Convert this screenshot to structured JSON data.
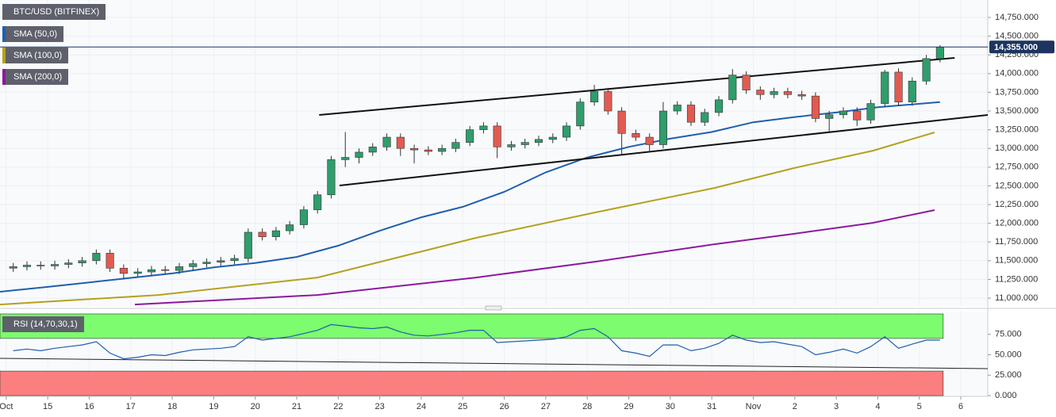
{
  "chart_data": {
    "type": "candlestick",
    "legend": "BTC/USD (BITFINEX)",
    "up_color": "#2f9d6c",
    "down_color": "#e15b51",
    "xlim": [
      13.85,
      37.65
    ],
    "xticks": [
      {
        "value": 14,
        "label": "Oct"
      },
      15,
      16,
      17,
      18,
      19,
      20,
      21,
      22,
      23,
      24,
      25,
      26,
      27,
      28,
      29,
      30,
      31,
      {
        "value": 32,
        "label": "Nov"
      },
      {
        "value": 33,
        "label": "2"
      },
      {
        "value": 34,
        "label": "3"
      },
      {
        "value": 35,
        "label": "4"
      },
      {
        "value": 36,
        "label": "5"
      },
      {
        "value": 37,
        "label": "6"
      }
    ],
    "ylim": [
      10905,
      14962
    ],
    "yticks": [
      {
        "value": 11000,
        "label": "11,000.000"
      },
      {
        "value": 11250,
        "label": "11,250.000"
      },
      {
        "value": 11500,
        "label": "11,500.000"
      },
      {
        "value": 11750,
        "label": "11,750.000"
      },
      {
        "value": 12000,
        "label": "12,000.000"
      },
      {
        "value": 12250,
        "label": "12,250.000"
      },
      {
        "value": 12500,
        "label": "12,500.000"
      },
      {
        "value": 12750,
        "label": "12,750.000"
      },
      {
        "value": 13000,
        "label": "13,000.000"
      },
      {
        "value": 13250,
        "label": "13,250.000"
      },
      {
        "value": 13500,
        "label": "13,500.000"
      },
      {
        "value": 13750,
        "label": "13,750.000"
      },
      {
        "value": 14000,
        "label": "14,000.000"
      },
      {
        "value": 14250,
        "label": "14,250.000"
      },
      {
        "value": 14500,
        "label": "14,500.000"
      },
      {
        "value": 14750,
        "label": "14,750.000"
      }
    ],
    "grid": true,
    "last_price": {
      "value": 14355,
      "label": "14,355.000",
      "color": "#1d3461"
    },
    "candles": {
      "x": [
        14.17,
        14.5,
        14.83,
        15.17,
        15.5,
        15.83,
        16.17,
        16.5,
        16.83,
        17.17,
        17.5,
        17.83,
        18.17,
        18.5,
        18.83,
        19.17,
        19.5,
        19.83,
        20.17,
        20.5,
        20.83,
        21.17,
        21.5,
        21.83,
        22.17,
        22.5,
        22.83,
        23.17,
        23.5,
        23.83,
        24.17,
        24.5,
        24.83,
        25.17,
        25.5,
        25.83,
        26.17,
        26.5,
        26.83,
        27.17,
        27.5,
        27.83,
        28.17,
        28.5,
        28.83,
        29.17,
        29.5,
        29.83,
        30.17,
        30.5,
        30.83,
        31.17,
        31.5,
        31.83,
        32.17,
        32.5,
        32.83,
        33.17,
        33.5,
        33.83,
        34.17,
        34.5,
        34.83,
        35.17,
        35.5,
        35.83,
        36.17,
        36.5
      ],
      "open": [
        11400,
        11420,
        11440,
        11430,
        11450,
        11470,
        11500,
        11600,
        11400,
        11330,
        11350,
        11380,
        11370,
        11420,
        11460,
        11480,
        11500,
        11530,
        11880,
        11820,
        11900,
        11980,
        12180,
        12380,
        12850,
        12880,
        12950,
        13020,
        13150,
        13000,
        12980,
        12960,
        13000,
        13080,
        13250,
        13300,
        13020,
        13050,
        13080,
        13120,
        13150,
        13300,
        13620,
        13760,
        13500,
        13200,
        13150,
        13050,
        13500,
        13580,
        13350,
        13480,
        13650,
        13980,
        13780,
        13720,
        13760,
        13720,
        13700,
        13400,
        13450,
        13500,
        13380,
        13600,
        14020,
        13620,
        13900,
        14200
      ],
      "high": [
        11470,
        11490,
        11490,
        11500,
        11520,
        11550,
        11650,
        11650,
        11450,
        11400,
        11430,
        11430,
        11470,
        11510,
        11530,
        11550,
        11580,
        11930,
        11930,
        11950,
        12030,
        12230,
        12430,
        12900,
        13220,
        13000,
        13070,
        13200,
        13200,
        13050,
        13030,
        13050,
        13130,
        13300,
        13350,
        13350,
        13100,
        13130,
        13170,
        13200,
        13350,
        13670,
        13850,
        13810,
        13550,
        13250,
        13200,
        13620,
        13630,
        13630,
        13530,
        13700,
        14060,
        14030,
        13830,
        13810,
        13810,
        13770,
        13750,
        13500,
        13550,
        13550,
        13650,
        14050,
        14070,
        13950,
        14250,
        14380
      ],
      "low": [
        11350,
        11370,
        11380,
        11380,
        11400,
        11420,
        11450,
        11350,
        11250,
        11280,
        11300,
        11320,
        11320,
        11370,
        11410,
        11430,
        11450,
        11480,
        11770,
        11770,
        11850,
        11930,
        12130,
        12330,
        12750,
        12800,
        12900,
        12970,
        12900,
        12800,
        12910,
        12910,
        12950,
        13030,
        13200,
        12870,
        12970,
        13000,
        13030,
        13070,
        13100,
        13250,
        13570,
        13450,
        12920,
        13100,
        12950,
        13000,
        13450,
        13300,
        13300,
        13430,
        13600,
        13730,
        13650,
        13670,
        13670,
        13650,
        13350,
        13220,
        13400,
        13300,
        13330,
        13550,
        13570,
        13570,
        13850,
        14150
      ],
      "close": [
        11420,
        11440,
        11430,
        11450,
        11470,
        11500,
        11600,
        11400,
        11330,
        11350,
        11380,
        11370,
        11420,
        11460,
        11480,
        11500,
        11530,
        11880,
        11820,
        11900,
        11980,
        12180,
        12380,
        12850,
        12880,
        12950,
        13020,
        13150,
        13000,
        12980,
        12960,
        13000,
        13080,
        13250,
        13300,
        13020,
        13050,
        13080,
        13120,
        13150,
        13300,
        13620,
        13760,
        13500,
        13200,
        13150,
        13050,
        13500,
        13580,
        13350,
        13480,
        13650,
        13980,
        13780,
        13720,
        13760,
        13720,
        13700,
        13400,
        13450,
        13500,
        13380,
        13600,
        14020,
        13620,
        13900,
        14200,
        14355
      ]
    },
    "series": [
      {
        "name": "SMA (50,0)",
        "color": "#1f5fae",
        "x": [
          13.85,
          15,
          16,
          17,
          18,
          19,
          20,
          21,
          22,
          23,
          24,
          25,
          26,
          27,
          28,
          29,
          30,
          31,
          32,
          33,
          34,
          35,
          36.5
        ],
        "values": [
          11085,
          11150,
          11210,
          11270,
          11330,
          11410,
          11470,
          11550,
          11700,
          11900,
          12080,
          12220,
          12420,
          12680,
          12880,
          13020,
          13130,
          13220,
          13350,
          13420,
          13480,
          13550,
          13620
        ]
      },
      {
        "name": "SMA (100,0)",
        "color": "#b4a21f",
        "x": [
          13.85,
          17.67,
          21.5,
          25.32,
          28.19,
          31.06,
          32.97,
          34.88,
          36.37
        ],
        "values": [
          10915,
          11042,
          11275,
          11805,
          12144,
          12472,
          12737,
          12970,
          13214
        ]
      },
      {
        "name": "SMA (200,0)",
        "color": "#8c1a9c",
        "x": [
          17.1,
          21.5,
          25.32,
          28.19,
          31.06,
          32.97,
          34.88,
          36.37
        ],
        "values": [
          10915,
          11042,
          11275,
          11487,
          11720,
          11858,
          12006,
          12176
        ]
      }
    ],
    "trendlines": [
      {
        "x": [
          21.54,
          36.85
        ],
        "values": [
          13447,
          14210
        ]
      },
      {
        "x": [
          22.03,
          37.65
        ],
        "values": [
          12504,
          13447
        ]
      }
    ],
    "rsi": {
      "legend": "RSI (14,70,30,1)",
      "color": "#1f5fae",
      "overbought": 70,
      "oversold": 30,
      "ylim": [
        0,
        100
      ],
      "yticks": [
        {
          "value": 0,
          "label": "0.000"
        },
        {
          "value": 25,
          "label": "25.000"
        },
        {
          "value": 50,
          "label": "50.000"
        },
        {
          "value": 75,
          "label": "75.000"
        }
      ],
      "values": [
        55,
        57,
        55,
        58,
        60,
        62,
        66,
        52,
        45,
        47,
        50,
        49,
        53,
        56,
        57,
        58,
        60,
        72,
        68,
        70,
        72,
        76,
        80,
        87,
        85,
        83,
        82,
        84,
        78,
        74,
        73,
        75,
        77,
        80,
        80,
        65,
        66,
        67,
        68,
        69,
        72,
        80,
        82,
        72,
        55,
        52,
        48,
        62,
        62,
        55,
        58,
        64,
        74,
        68,
        65,
        66,
        63,
        60,
        50,
        53,
        57,
        52,
        60,
        72,
        58,
        63,
        68,
        68
      ],
      "trendline": {
        "x": [
          13.85,
          37.65
        ],
        "values": [
          45.6,
          33
        ]
      }
    }
  }
}
